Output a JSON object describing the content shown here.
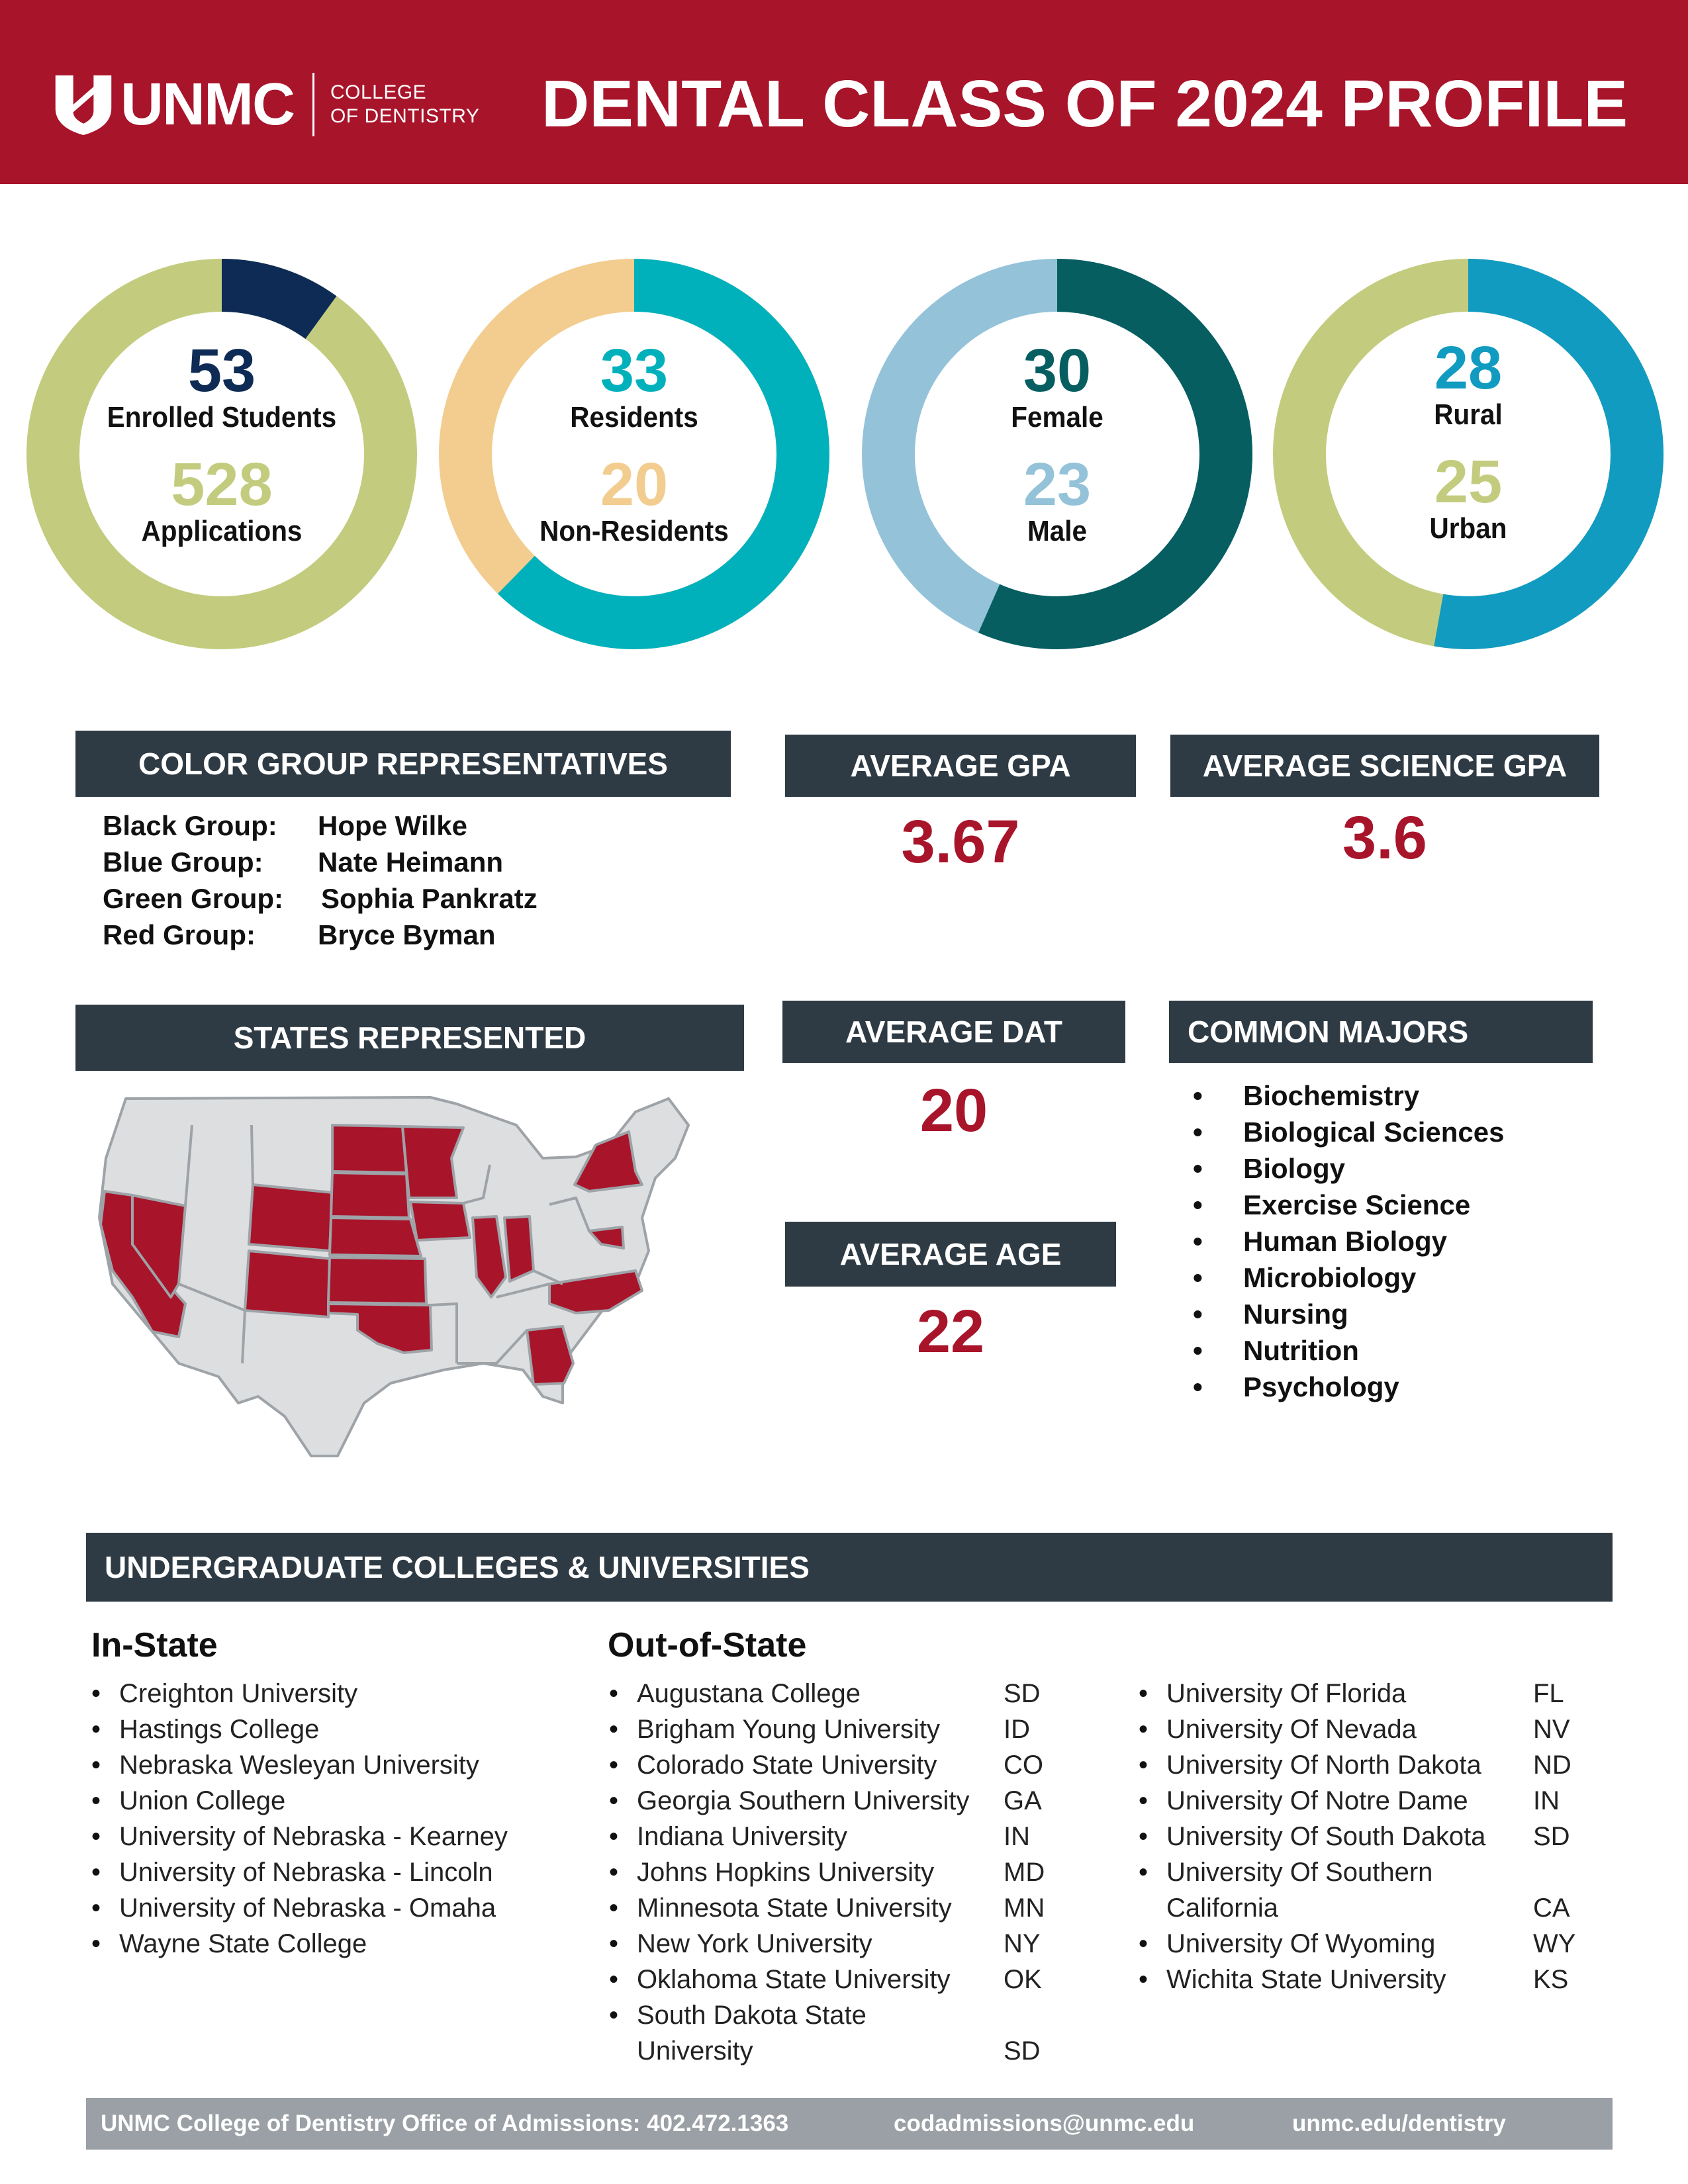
{
  "header": {
    "logo_word": "UNMC",
    "logo_sub_line1": "COLLEGE",
    "logo_sub_line2": "OF DENTISTRY",
    "title": "DENTAL CLASS OF 2024 PROFILE"
  },
  "colors": {
    "brand_red": "#a8142a",
    "bar_dark": "#2f3b44",
    "footer_gray": "#9aa0a5",
    "navy": "#0e2b55",
    "olive": "#c3cc7e",
    "teal": "#00b1bc",
    "peach": "#f2cd8f",
    "dark_teal": "#065e61",
    "light_blue": "#94c3d9",
    "blue": "#119bc1"
  },
  "donuts": [
    {
      "top_value": "53",
      "top_label": "Enrolled Students",
      "bottom_value": "528",
      "bottom_label": "Applications",
      "fraction": 0.1
    },
    {
      "top_value": "33",
      "top_label": "Residents",
      "bottom_value": "20",
      "bottom_label": "Non-Residents",
      "fraction": 0.623
    },
    {
      "top_value": "30",
      "top_label": "Female",
      "bottom_value": "23",
      "bottom_label": "Male",
      "fraction": 0.566
    },
    {
      "top_value": "28",
      "top_label": "Rural",
      "bottom_value": "25",
      "bottom_label": "Urban",
      "fraction": 0.528
    }
  ],
  "color_groups": {
    "title": "COLOR GROUP REPRESENTATIVES",
    "rows": [
      {
        "group": "Black Group:",
        "name": "Hope Wilke"
      },
      {
        "group": "Blue Group:",
        "name": "Nate Heimann"
      },
      {
        "group": "Green Group:",
        "name": "Sophia Pankratz"
      },
      {
        "group": "Red Group:",
        "name": "Bryce Byman"
      }
    ]
  },
  "stats": {
    "gpa_label": "AVERAGE GPA",
    "gpa_value": "3.67",
    "sci_gpa_label": "AVERAGE SCIENCE GPA",
    "sci_gpa_value": "3.6",
    "dat_label": "AVERAGE DAT",
    "dat_value": "20",
    "age_label": "AVERAGE AGE",
    "age_value": "22"
  },
  "states": {
    "title": "STATES REPRESENTED"
  },
  "majors": {
    "title": "COMMON MAJORS",
    "items": [
      "Biochemistry",
      "Biological Sciences",
      "Biology",
      "Exercise Science",
      "Human Biology",
      "Microbiology",
      "Nursing",
      "Nutrition",
      "Psychology"
    ]
  },
  "colleges": {
    "title": "UNDERGRADUATE COLLEGES & UNIVERSITIES",
    "in_state_heading": "In-State",
    "out_state_heading": "Out-of-State",
    "in_state": [
      "Creighton University",
      "Hastings College",
      "Nebraska Wesleyan University",
      "Union College",
      "University of Nebraska - Kearney",
      "University of Nebraska - Lincoln",
      "University of Nebraska - Omaha",
      "Wayne State College"
    ],
    "out_state_1": [
      {
        "name": "Augustana College",
        "state": "SD"
      },
      {
        "name": "Brigham Young University",
        "state": "ID"
      },
      {
        "name": "Colorado State University",
        "state": "CO"
      },
      {
        "name": "Georgia Southern University",
        "state": "GA"
      },
      {
        "name": "Indiana University",
        "state": "IN"
      },
      {
        "name": "Johns Hopkins University",
        "state": "MD"
      },
      {
        "name": "Minnesota State University",
        "state": "MN"
      },
      {
        "name": "New York University",
        "state": "NY"
      },
      {
        "name": "Oklahoma State University",
        "state": "OK"
      },
      {
        "name": "South Dakota State",
        "name2": "University",
        "state": "SD"
      }
    ],
    "out_state_2": [
      {
        "name": "University Of Florida",
        "state": "FL"
      },
      {
        "name": "University Of Nevada",
        "state": "NV"
      },
      {
        "name": "University Of North Dakota",
        "state": "ND"
      },
      {
        "name": "University Of Notre Dame",
        "state": "IN"
      },
      {
        "name": "University Of South Dakota",
        "state": "SD"
      },
      {
        "name": "University Of Southern",
        "name2": "California",
        "state": "CA"
      },
      {
        "name": "University Of Wyoming",
        "state": "WY"
      },
      {
        "name": "Wichita State University",
        "state": "KS"
      }
    ]
  },
  "footer": {
    "office": "UNMC College of Dentistry Office of Admissions: 402.472.1363",
    "email": "codadmissions@unmc.edu",
    "web": "unmc.edu/dentistry"
  }
}
